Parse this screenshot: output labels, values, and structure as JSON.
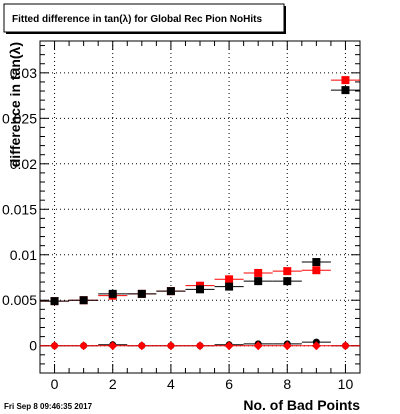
{
  "canvas": {
    "title": "Fitted difference in tan(λ) for Global Rec Pion NoHits",
    "datestamp": "Fri Sep  8 09:46:35 2017"
  },
  "chart_data": {
    "type": "scatter",
    "xlabel": "No. of Bad Points",
    "ylabel": "difference in tan(λ)",
    "xlim": [
      -0.5,
      10.5
    ],
    "ylim": [
      -0.003,
      0.0335
    ],
    "grid": true,
    "x_ticks": [
      0,
      2,
      4,
      6,
      8,
      10
    ],
    "x_tick_labels": [
      "0",
      "2",
      "4",
      "6",
      "8",
      "10"
    ],
    "y_ticks": [
      0,
      0.005,
      0.01,
      0.015,
      0.02,
      0.025,
      0.03
    ],
    "y_tick_labels": [
      "0",
      "0.005",
      "0.01",
      "0.015",
      "0.02",
      "0.025",
      "0.03"
    ],
    "series": [
      {
        "color": "#ff0000",
        "marker": "square",
        "x": [
          0,
          1,
          2,
          3,
          4,
          5,
          6,
          7,
          8,
          9,
          10
        ],
        "y": [
          0.0049,
          0.005,
          0.0055,
          0.0057,
          0.006,
          0.0066,
          0.0073,
          0.008,
          0.0082,
          0.0083,
          0.0292
        ]
      },
      {
        "color": "#000000",
        "marker": "square",
        "x": [
          0,
          1,
          2,
          3,
          4,
          5,
          6,
          7,
          8,
          9,
          10
        ],
        "y": [
          0.0049,
          0.005,
          0.0057,
          0.0057,
          0.006,
          0.0062,
          0.0065,
          0.0071,
          0.0071,
          0.0092,
          0.0281
        ]
      },
      {
        "color": "#000000",
        "marker": "circle",
        "x": [
          0,
          1,
          2,
          3,
          4,
          5,
          6,
          7,
          8,
          9,
          10
        ],
        "y": [
          0.0,
          0.0,
          0.0001,
          0.0,
          0.0,
          0.0,
          0.0001,
          0.0002,
          0.0002,
          0.0004,
          0.0
        ]
      },
      {
        "color": "#ff0000",
        "marker": "diamond",
        "x": [
          0,
          1,
          2,
          3,
          4,
          5,
          6,
          7,
          8,
          9,
          10
        ],
        "y": [
          0.0,
          0.0,
          0.0,
          0.0,
          0.0,
          0.0,
          0.0,
          0.0,
          0.0,
          0.0,
          0.0
        ]
      }
    ]
  }
}
